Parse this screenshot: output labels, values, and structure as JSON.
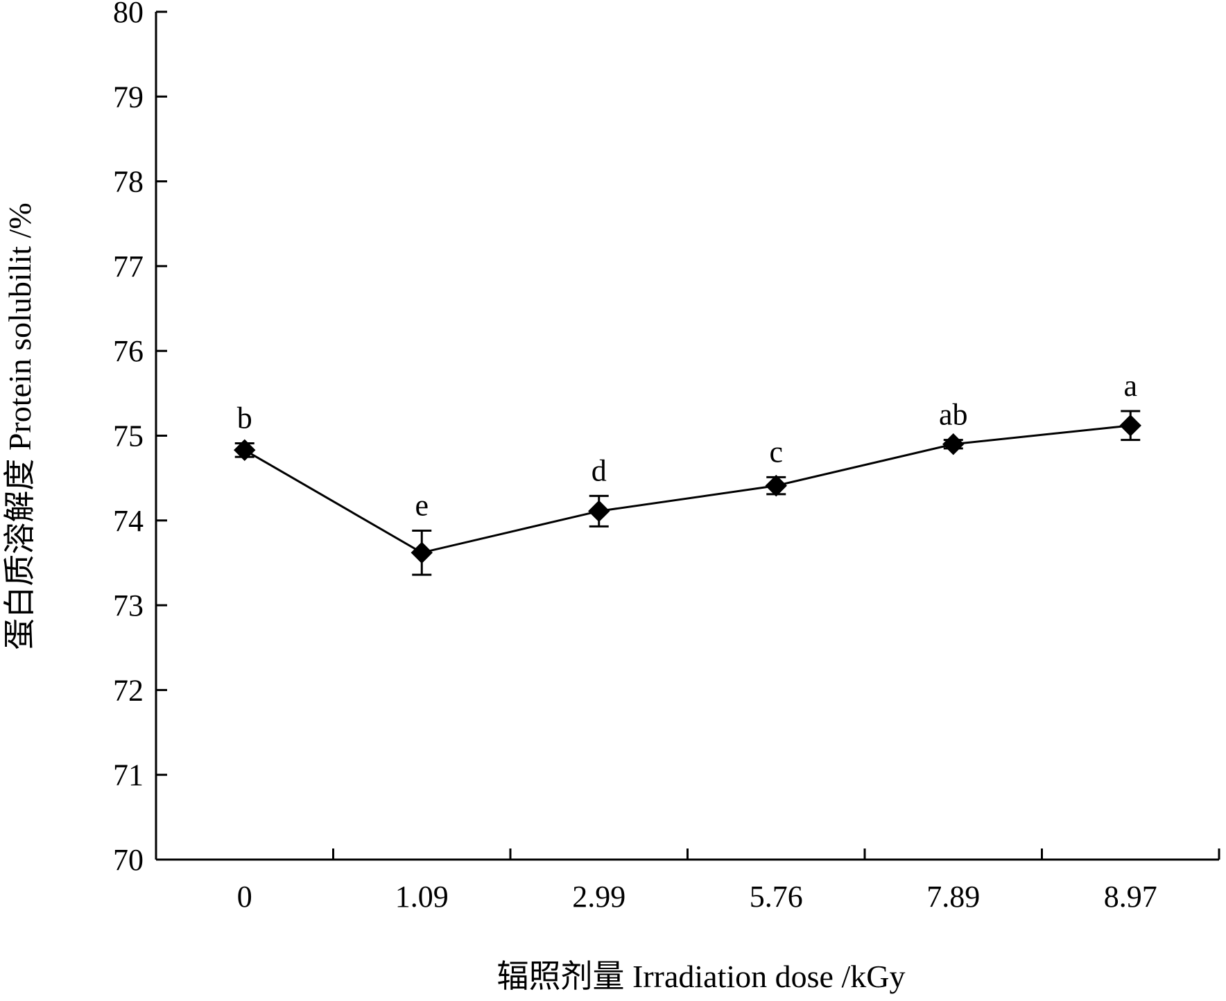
{
  "chart_data": {
    "type": "line",
    "title": "",
    "xlabel": "辐照剂量 Irradiation dose /kGy",
    "ylabel": "蛋白质溶解度 Protein solubilit /%",
    "categories": [
      "0",
      "1.09",
      "2.99",
      "5.76",
      "7.89",
      "8.97"
    ],
    "series": [
      {
        "values": [
          74.83,
          73.62,
          74.11,
          74.41,
          74.9,
          75.12
        ],
        "error": [
          0.08,
          0.26,
          0.18,
          0.1,
          0.05,
          0.17
        ],
        "significance_labels": [
          "b",
          "e",
          "d",
          "c",
          "ab",
          "a"
        ],
        "color": "#000000",
        "marker": "diamond"
      }
    ],
    "ylim": [
      70,
      80
    ],
    "yticks": [
      "70",
      "71",
      "72",
      "73",
      "74",
      "75",
      "76",
      "77",
      "78",
      "79",
      "80"
    ],
    "grid": false,
    "legend": "none"
  }
}
